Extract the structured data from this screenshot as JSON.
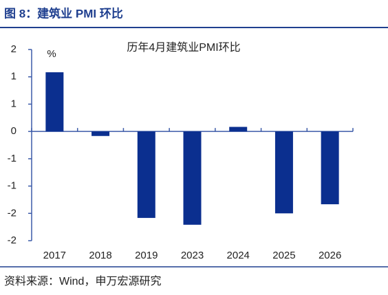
{
  "chart_data": {
    "type": "bar",
    "title": "图 8：建筑业 PMI 环比",
    "subtitle": "历年4月建筑业PMI环比",
    "ylabel": "%",
    "categories": [
      "2017",
      "2018",
      "2019",
      "2023",
      "2024",
      "2025",
      "2026"
    ],
    "values": [
      1.3,
      -0.1,
      -1.9,
      -2.05,
      0.1,
      -1.8,
      -1.6
    ],
    "color": "#0b2f8f",
    "ylim": [
      -2.4,
      1.8
    ],
    "yticks": [
      {
        "value": 1.8,
        "label": "2"
      },
      {
        "value": 1.2,
        "label": "1"
      },
      {
        "value": 0.6,
        "label": "1"
      },
      0,
      {
        "value": -0.6,
        "label": "-1"
      },
      {
        "value": -1.2,
        "label": "-1"
      },
      {
        "value": -1.8,
        "label": "-2"
      },
      {
        "value": -2.4,
        "label": "-2"
      }
    ],
    "source": "资料来源：Wind，申万宏源研究"
  }
}
